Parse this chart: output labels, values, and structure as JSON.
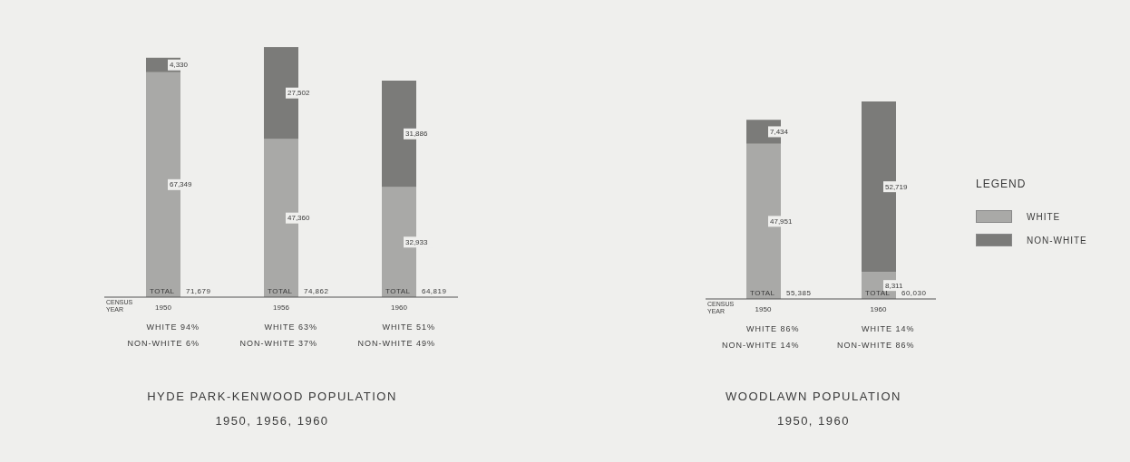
{
  "chart_data": [
    {
      "type": "bar",
      "stacked": true,
      "title": "HYDE PARK-KENWOOD POPULATION",
      "subtitle": "1950, 1956, 1960",
      "xlabel": "CENSUS YEAR",
      "categories": [
        "1950",
        "1956",
        "1960"
      ],
      "series": [
        {
          "color": "#a9a9a7",
          "values": [
            67349,
            47360,
            32933
          ],
          "value_labels": [
            "67,349",
            "47,360",
            "32,933"
          ]
        },
        {
          "color": "#7b7b79",
          "values": [
            4330,
            27502,
            31886
          ],
          "value_labels": [
            "4,330",
            "27,502",
            "31,886"
          ]
        }
      ],
      "totals": [
        "TOTAL 71,679",
        "TOTAL 74,862",
        "TOTAL 64,819"
      ],
      "legend": false,
      "annotations": [
        "WHITE 94%",
        "NON-WHITE 6%",
        "WHITE 63%",
        "NON-WHITE 37%",
        "WHITE 51%",
        "NON-WHITE 49%"
      ]
    },
    {
      "type": "bar",
      "stacked": true,
      "title": "WOODLAWN POPULATION",
      "subtitle": "1950, 1960",
      "xlabel": "CENSUS YEAR",
      "legend_title": "LEGEND",
      "categories": [
        "1950",
        "1960"
      ],
      "series": [
        {
          "name": "WHITE",
          "color": "#a9a9a7",
          "values": [
            47951,
            8311
          ],
          "value_labels": [
            "47,951",
            "8,311"
          ]
        },
        {
          "name": "NON-WHITE",
          "color": "#7b7b79",
          "values": [
            7434,
            52719
          ],
          "value_labels": [
            "7,434",
            "52,719"
          ]
        }
      ],
      "totals": [
        "TOTAL 55,385",
        "TOTAL 60,030"
      ],
      "legend": "right",
      "annotations": [
        "WHITE 86%",
        "NON-WHITE 14%",
        "WHITE 14%",
        "NON-WHITE 86%"
      ]
    }
  ]
}
